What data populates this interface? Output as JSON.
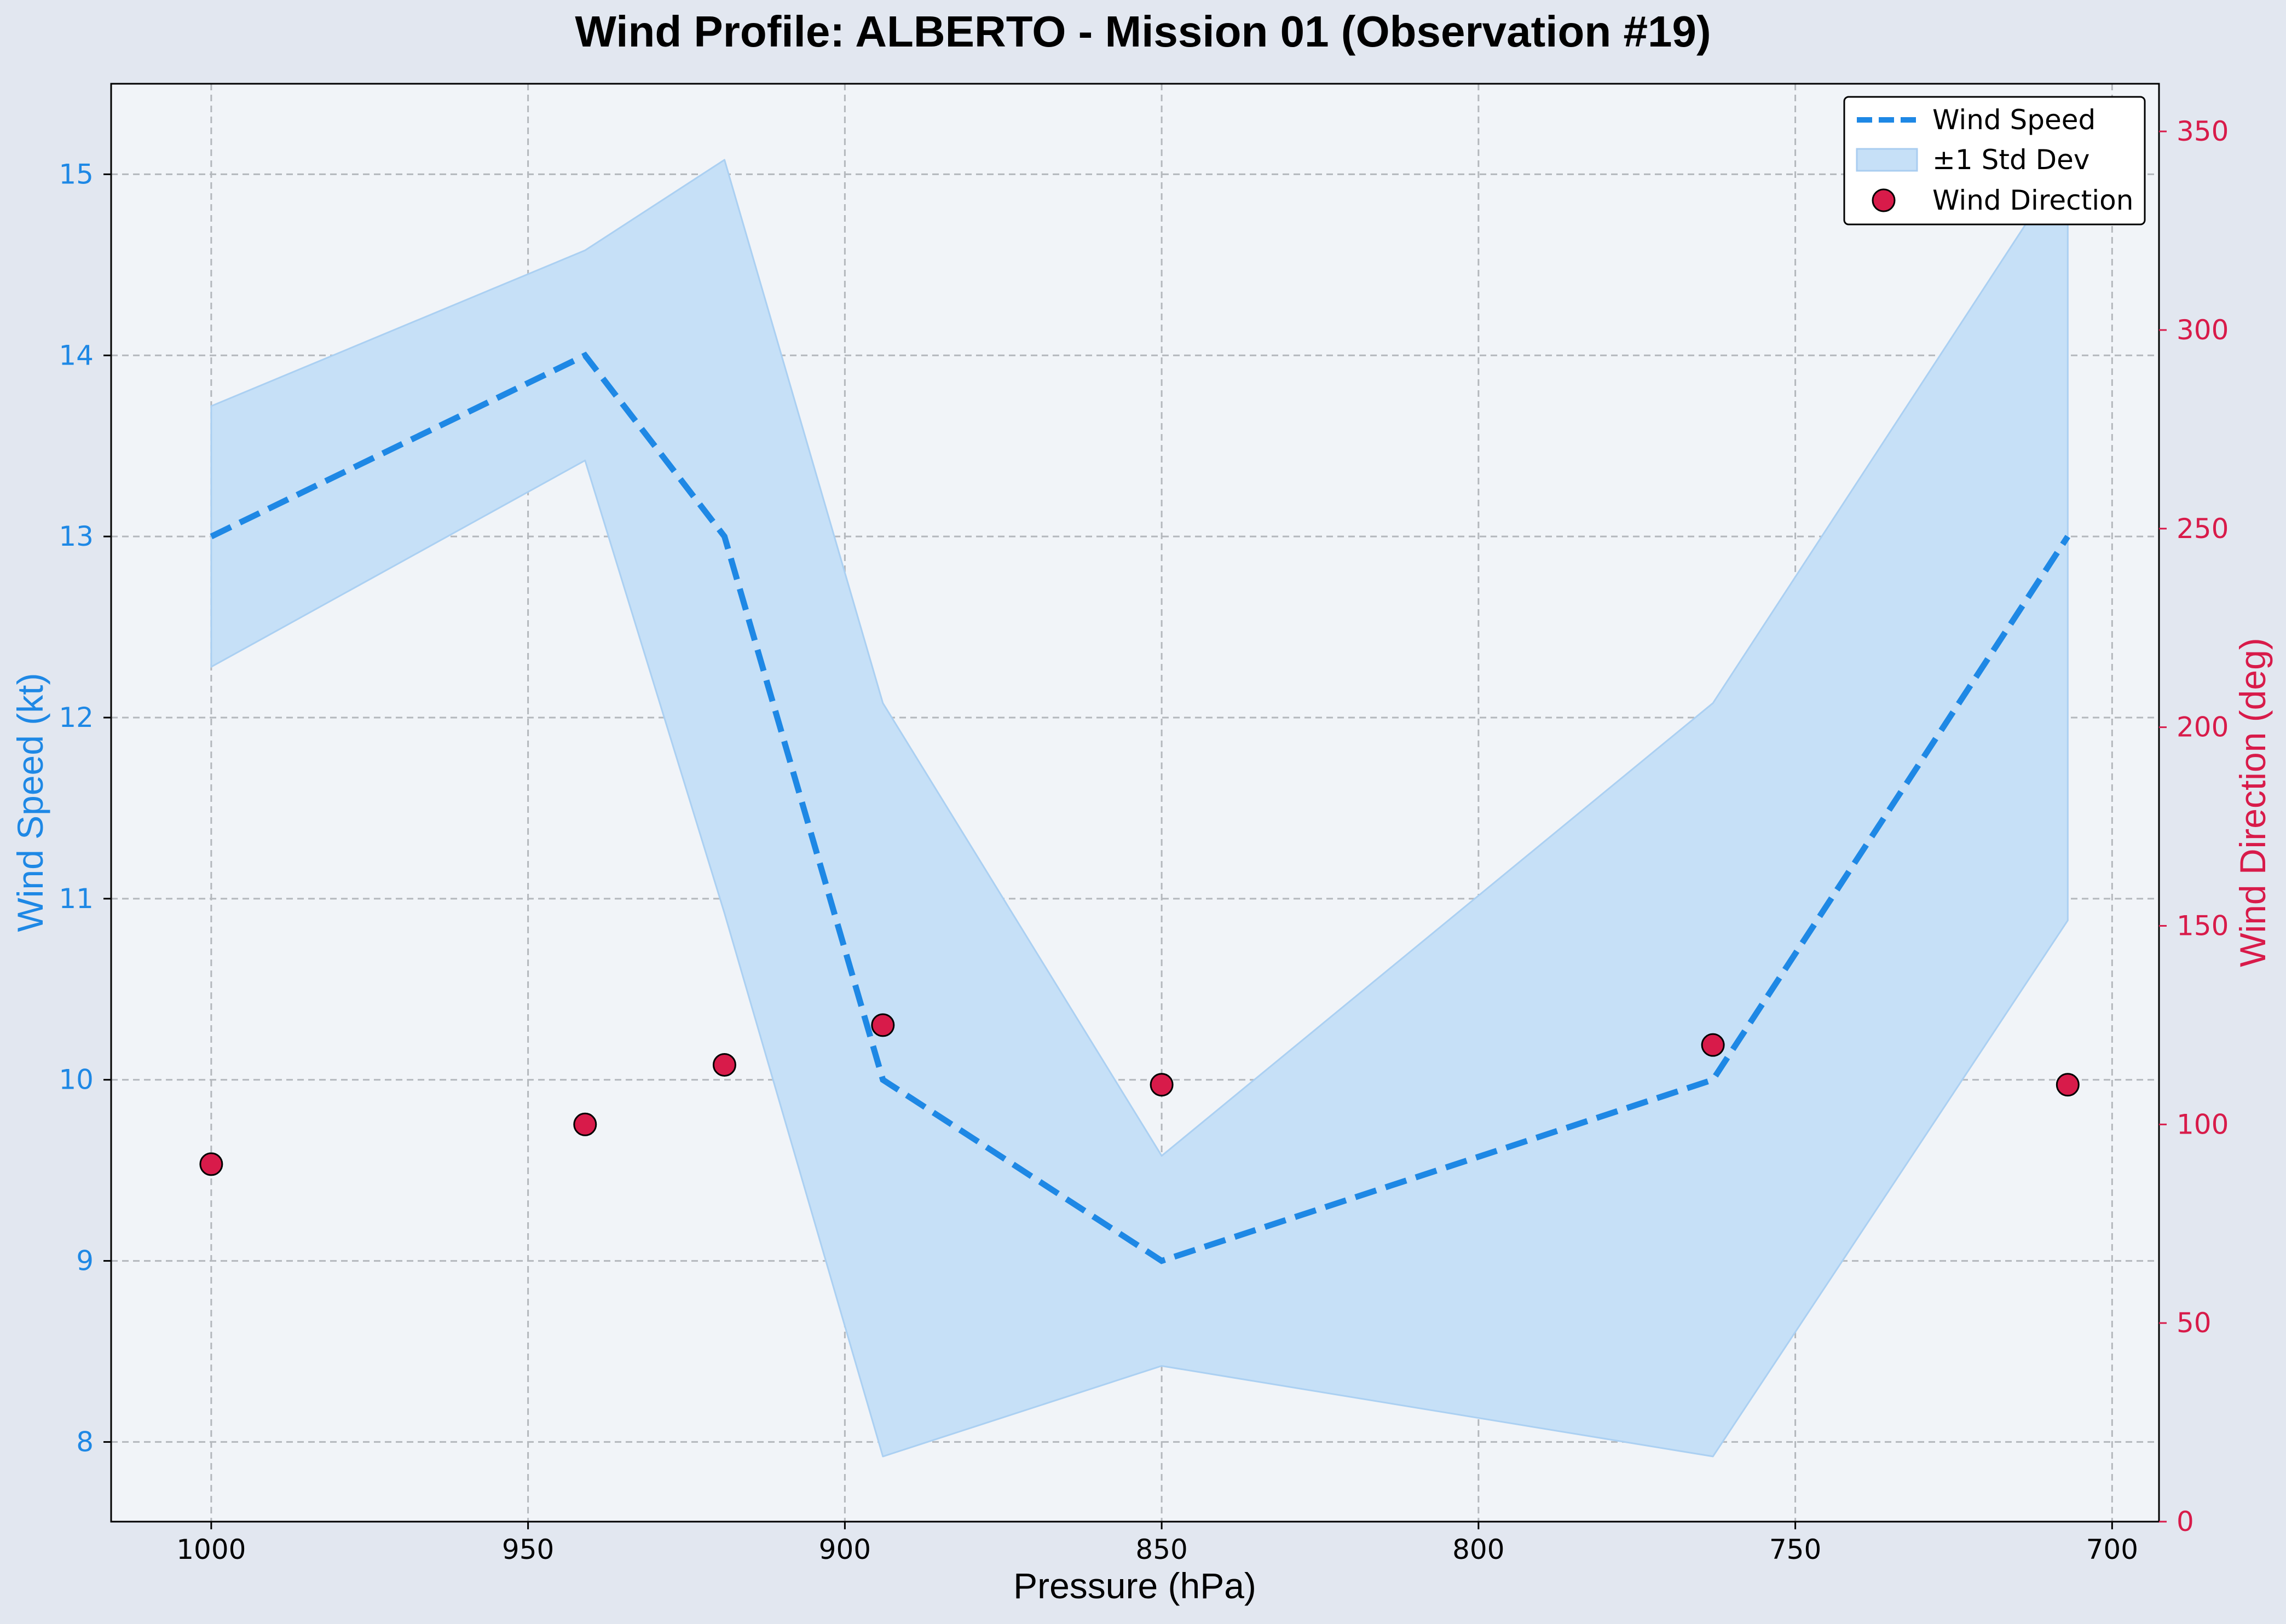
{
  "chart_data": {
    "type": "line",
    "title": "Wind Profile: ALBERTO - Mission 01 (Observation #19)",
    "xlabel": "Pressure (hPa)",
    "ylabel": "Wind Speed (kt)",
    "y2label": "Wind Direction (deg)",
    "x_reversed": true,
    "xlim": [
      1015.8,
      692.6
    ],
    "ylim": [
      7.56,
      15.5
    ],
    "y2lim": [
      0,
      362
    ],
    "xticks": [
      1000,
      950,
      900,
      850,
      800,
      750,
      700
    ],
    "yticks": [
      8,
      9,
      10,
      11,
      12,
      13,
      14,
      15
    ],
    "y2ticks": [
      0,
      50,
      100,
      150,
      200,
      250,
      300,
      350
    ],
    "grid": true,
    "legend_position": "top-right",
    "colors": {
      "speed": "#1e88e5",
      "band": "#c6e0f7",
      "direction": "#d81b4a",
      "plot_bg": "#f1f4f8",
      "figure_bg": "#e2e7f0"
    },
    "x": [
      1000,
      941,
      919,
      894,
      850,
      763,
      707
    ],
    "series": [
      {
        "name": "Wind Speed",
        "axis": "left",
        "style": "dashed",
        "values": [
          13,
          14,
          13,
          10,
          9,
          10,
          13
        ]
      },
      {
        "name": "±1 Std Dev",
        "axis": "left",
        "style": "band",
        "upper": [
          13.72,
          14.58,
          15.08,
          12.08,
          9.58,
          12.08,
          15.08
        ],
        "lower": [
          12.28,
          13.42,
          10.92,
          7.92,
          8.42,
          7.92,
          10.88
        ]
      },
      {
        "name": "Wind Direction",
        "axis": "right",
        "style": "scatter",
        "values": [
          90,
          100,
          115,
          125,
          110,
          120,
          110
        ]
      }
    ]
  }
}
